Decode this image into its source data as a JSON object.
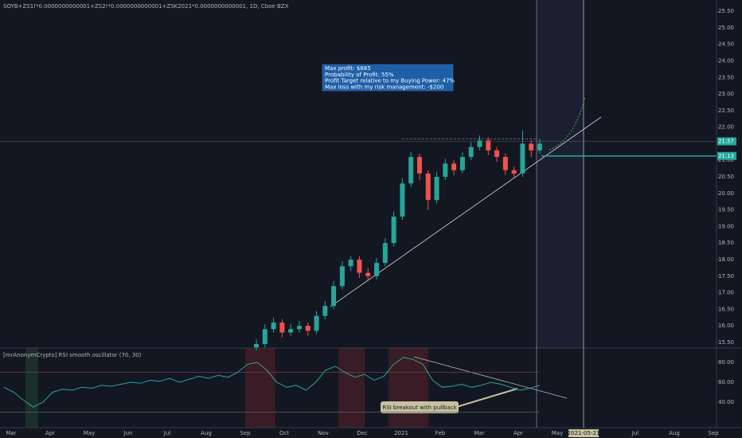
{
  "chart_data": [
    {
      "type": "candlestick",
      "title": "SOYB+ZS1!*0.0000000000001+ZS2!*0.0000000000001+ZSK2021*0.0000000000001, 1D, Cboe BZX",
      "annotation": [
        "Max profit: $685",
        "Probability of Profit: 55%",
        "Profit Target relative to my Buying Power: 47%",
        "Max loss with my risk management:  -$200"
      ],
      "x_axis_labels": [
        "Mar",
        "Apr",
        "May",
        "Jun",
        "Jul",
        "Aug",
        "Sep",
        "Oct",
        "Nov",
        "Dec",
        "2021",
        "Feb",
        "Mar",
        "Apr",
        "May",
        null,
        "Jul",
        "Aug",
        "Sep"
      ],
      "x_marker": "2021-05-21",
      "open": [
        15.35,
        15.45,
        15.9,
        16.1,
        15.8,
        15.9,
        16.0,
        15.85,
        16.3,
        16.6,
        17.2,
        17.8,
        18.0,
        17.6,
        17.5,
        17.9,
        18.5,
        19.3,
        20.3,
        21.1,
        20.6,
        19.8,
        20.5,
        20.9,
        20.7,
        21.1,
        21.4,
        21.6,
        21.3,
        21.1,
        20.7,
        20.6,
        21.5,
        21.3
      ],
      "high": [
        15.6,
        16.05,
        16.25,
        16.2,
        16.05,
        16.15,
        16.1,
        16.45,
        16.75,
        17.35,
        17.95,
        18.1,
        18.1,
        17.75,
        18.05,
        18.65,
        19.45,
        20.45,
        21.25,
        21.2,
        20.7,
        20.65,
        21.05,
        21.0,
        21.25,
        21.55,
        21.75,
        21.7,
        21.4,
        21.2,
        20.8,
        21.9,
        21.6,
        21.65
      ],
      "low": [
        15.25,
        15.35,
        15.8,
        15.65,
        15.7,
        15.8,
        15.7,
        15.75,
        16.2,
        16.5,
        17.1,
        17.65,
        17.45,
        17.35,
        17.4,
        17.8,
        18.4,
        19.2,
        20.2,
        20.4,
        19.5,
        19.7,
        20.4,
        20.55,
        20.6,
        21.0,
        21.3,
        21.15,
        20.95,
        20.55,
        20.45,
        20.5,
        21.1,
        21.2
      ],
      "close": [
        15.45,
        15.9,
        16.1,
        15.8,
        15.9,
        16.0,
        15.85,
        16.3,
        16.6,
        17.2,
        17.8,
        18.0,
        17.6,
        17.5,
        17.9,
        18.5,
        19.3,
        20.3,
        21.1,
        20.6,
        19.8,
        20.5,
        20.9,
        20.7,
        21.1,
        21.4,
        21.6,
        21.3,
        21.1,
        20.7,
        20.6,
        21.5,
        21.3,
        21.5
      ],
      "up_color": "#26a69a",
      "down_color": "#ef5350",
      "price_lines": [
        {
          "value": 21.57,
          "label": "21.57"
        },
        {
          "value": 21.13,
          "label": "21.13"
        }
      ],
      "ylim": [
        15.33,
        25.84
      ],
      "yticks": [
        {
          "value": 15.5,
          "label": "15.50"
        },
        {
          "value": 16,
          "label": "16.00"
        },
        {
          "value": 16.5,
          "label": "16.50"
        },
        {
          "value": 17,
          "label": "17.00"
        },
        {
          "value": 17.5,
          "label": "17.50"
        },
        {
          "value": 18,
          "label": "18.00"
        },
        {
          "value": 18.5,
          "label": "18.50"
        },
        {
          "value": 19,
          "label": "19.00"
        },
        {
          "value": 19.5,
          "label": "19.50"
        },
        {
          "value": 20,
          "label": "20.00"
        },
        {
          "value": 20.5,
          "label": "20.50"
        },
        {
          "value": 21,
          "label": "21.00"
        },
        {
          "value": 21.5,
          "label": "21.50"
        },
        {
          "value": 22,
          "label": "22.00"
        },
        {
          "value": 22.5,
          "label": "22.50"
        },
        {
          "value": 23,
          "label": "23.00"
        },
        {
          "value": 23.5,
          "label": "23.50"
        },
        {
          "value": 24,
          "label": "24.00"
        },
        {
          "value": 24.5,
          "label": "24.50"
        },
        {
          "value": 25,
          "label": "25.00"
        },
        {
          "value": 25.5,
          "label": "25.50"
        }
      ],
      "grid": false
    },
    {
      "type": "line",
      "title": "[mrAnonymCrypto] RSI smooth oscillator (70, 30)",
      "annotation": "RSI breakout with pullback",
      "color": "#26a69a",
      "values": [
        55,
        50,
        42,
        35,
        40,
        50,
        53,
        52,
        55,
        54,
        57,
        56,
        58,
        60,
        59,
        62,
        61,
        64,
        60,
        63,
        66,
        64,
        67,
        65,
        70,
        78,
        80,
        72,
        60,
        55,
        57,
        52,
        60,
        72,
        76,
        70,
        65,
        68,
        62,
        66,
        78,
        85,
        83,
        78,
        62,
        55,
        56,
        58,
        55,
        57,
        60,
        58,
        55,
        52,
        54,
        57
      ],
      "levels": [
        70,
        30
      ],
      "ylim": [
        14.4,
        94.4
      ],
      "yticks": [
        {
          "value": 80,
          "label": "80.00"
        },
        {
          "value": 60,
          "label": "60.00"
        },
        {
          "value": 40,
          "label": "40.00"
        }
      ],
      "grid": false
    }
  ]
}
